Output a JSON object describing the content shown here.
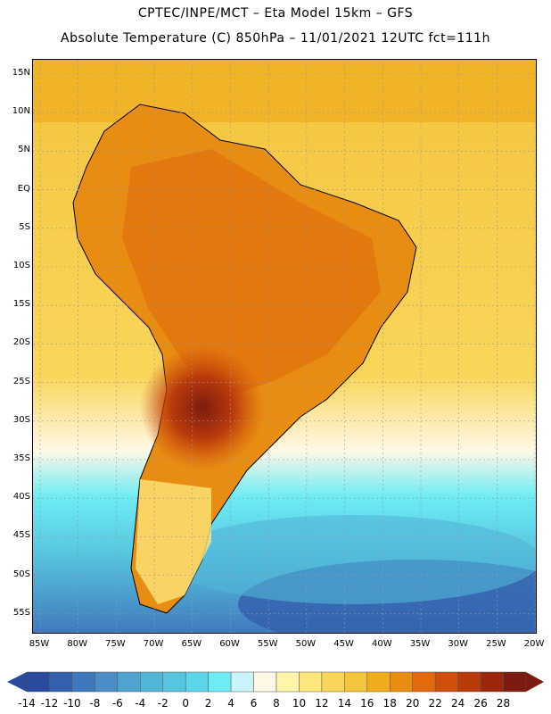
{
  "header": {
    "line1": "CPTEC/INPE/MCT –  Eta Model 15km – GFS",
    "line2": "Absolute Temperature (C) 850hPa – 11/01/2021 12UTC fct=111h"
  },
  "axes": {
    "lat_labels": [
      "15N",
      "10N",
      "5N",
      "EQ",
      "5S",
      "10S",
      "15S",
      "20S",
      "25S",
      "30S",
      "35S",
      "40S",
      "45S",
      "50S",
      "55S"
    ],
    "lon_labels": [
      "85W",
      "80W",
      "75W",
      "70W",
      "65W",
      "60W",
      "55W",
      "50W",
      "45W",
      "40W",
      "35W",
      "30W",
      "25W",
      "20W"
    ]
  },
  "colorbar": {
    "labels": [
      "-14",
      "-12",
      "-10",
      "-8",
      "-6",
      "-4",
      "-2",
      "0",
      "2",
      "4",
      "6",
      "8",
      "10",
      "12",
      "14",
      "16",
      "18",
      "20",
      "22",
      "24",
      "26",
      "28"
    ],
    "colors": [
      "#2a4a9e",
      "#3560ad",
      "#3f78bd",
      "#4a8ec8",
      "#4fa3d0",
      "#52b6d8",
      "#56c6df",
      "#5bd6e8",
      "#6eecf5",
      "#c8f4fa",
      "#fff8e6",
      "#fff5a8",
      "#fde67a",
      "#f9d65a",
      "#f4c43d",
      "#efad1e",
      "#e98d12",
      "#e06a0c",
      "#d04f0c",
      "#b93a0b",
      "#9c270c",
      "#7d1b10"
    ]
  },
  "colors": {
    "ocean_south_cold": "#4a8ec8",
    "ocean_south_mid": "#56c6df",
    "ocean_north": "#f4c43d",
    "land_warm": "#e98d12",
    "land_hot": "#b93a0b"
  }
}
